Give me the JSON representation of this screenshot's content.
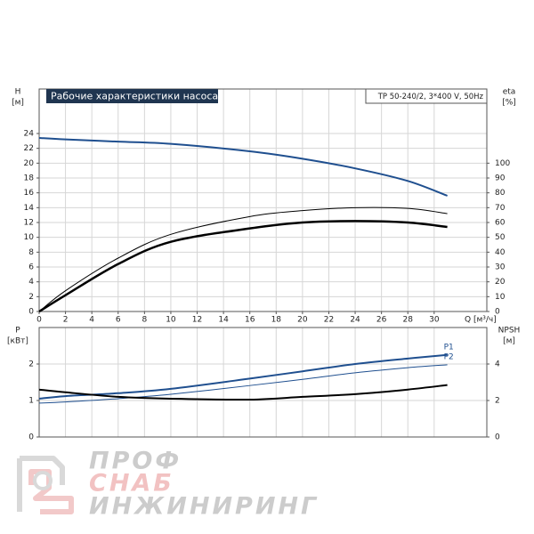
{
  "chart_data": [
    {
      "type": "line",
      "title": "Рабочие характеристики насоса",
      "subtitle": "TP 50-240/2, 3*400 V, 50Hz",
      "y_label": "H",
      "y_unit": "[м]",
      "y2_label": "eta",
      "y2_unit": "[%]",
      "x_label": "Q [м³/ч]",
      "x": [
        0,
        2,
        6,
        10,
        16,
        20,
        24,
        28,
        31
      ],
      "xlim": [
        0,
        34
      ],
      "xticks": [
        0,
        2,
        4,
        6,
        8,
        10,
        12,
        14,
        16,
        18,
        20,
        22,
        24,
        26,
        28,
        30
      ],
      "ylim": [
        0,
        30
      ],
      "yticks": [
        0,
        2,
        4,
        6,
        8,
        10,
        12,
        14,
        16,
        18,
        20,
        22,
        24
      ],
      "y2lim": [
        0,
        150
      ],
      "y2ticks": [
        0,
        10,
        20,
        30,
        40,
        50,
        60,
        70,
        80,
        90,
        100
      ],
      "grid": true,
      "series": [
        {
          "color": "#1f4f8f",
          "width": 2,
          "values": [
            23.4,
            23.2,
            22.9,
            22.6,
            21.6,
            20.6,
            19.3,
            17.6,
            15.6
          ]
        },
        {
          "color": "#000000",
          "width": 1,
          "axis": "y2",
          "values": [
            0,
            14,
            36,
            52,
            64,
            68,
            70,
            69.5,
            66
          ]
        },
        {
          "color": "#000000",
          "width": 2.5,
          "axis": "y2",
          "values": [
            0,
            11,
            32,
            47,
            56,
            60,
            61,
            60,
            57
          ]
        }
      ]
    },
    {
      "type": "line",
      "y_label": "P",
      "y_unit": "[кВт]",
      "y2_label": "NPSH",
      "y2_unit": "[м]",
      "x": [
        0,
        2,
        6,
        10,
        16,
        20,
        24,
        28,
        31
      ],
      "xlim": [
        0,
        34
      ],
      "ylim": [
        0,
        3
      ],
      "yticks": [
        0,
        1,
        2
      ],
      "y2lim": [
        0,
        6
      ],
      "y2ticks": [
        0,
        2,
        4
      ],
      "grid": true,
      "series": [
        {
          "name": "P1",
          "color": "#1f4f8f",
          "width": 2,
          "values": [
            1.05,
            1.12,
            1.2,
            1.32,
            1.6,
            1.8,
            2.0,
            2.15,
            2.25
          ]
        },
        {
          "name": "P2",
          "color": "#1f4f8f",
          "width": 1,
          "values": [
            0.93,
            0.96,
            1.05,
            1.17,
            1.41,
            1.58,
            1.76,
            1.9,
            1.98
          ]
        },
        {
          "color": "#000000",
          "width": 2,
          "axis": "y2",
          "values": [
            2.6,
            2.45,
            2.2,
            2.1,
            2.05,
            2.2,
            2.35,
            2.6,
            2.85
          ]
        }
      ]
    }
  ],
  "watermark": {
    "lines": [
      "ПРОФ",
      "СНАБ",
      "ИНЖИНИРИНГ"
    ]
  }
}
